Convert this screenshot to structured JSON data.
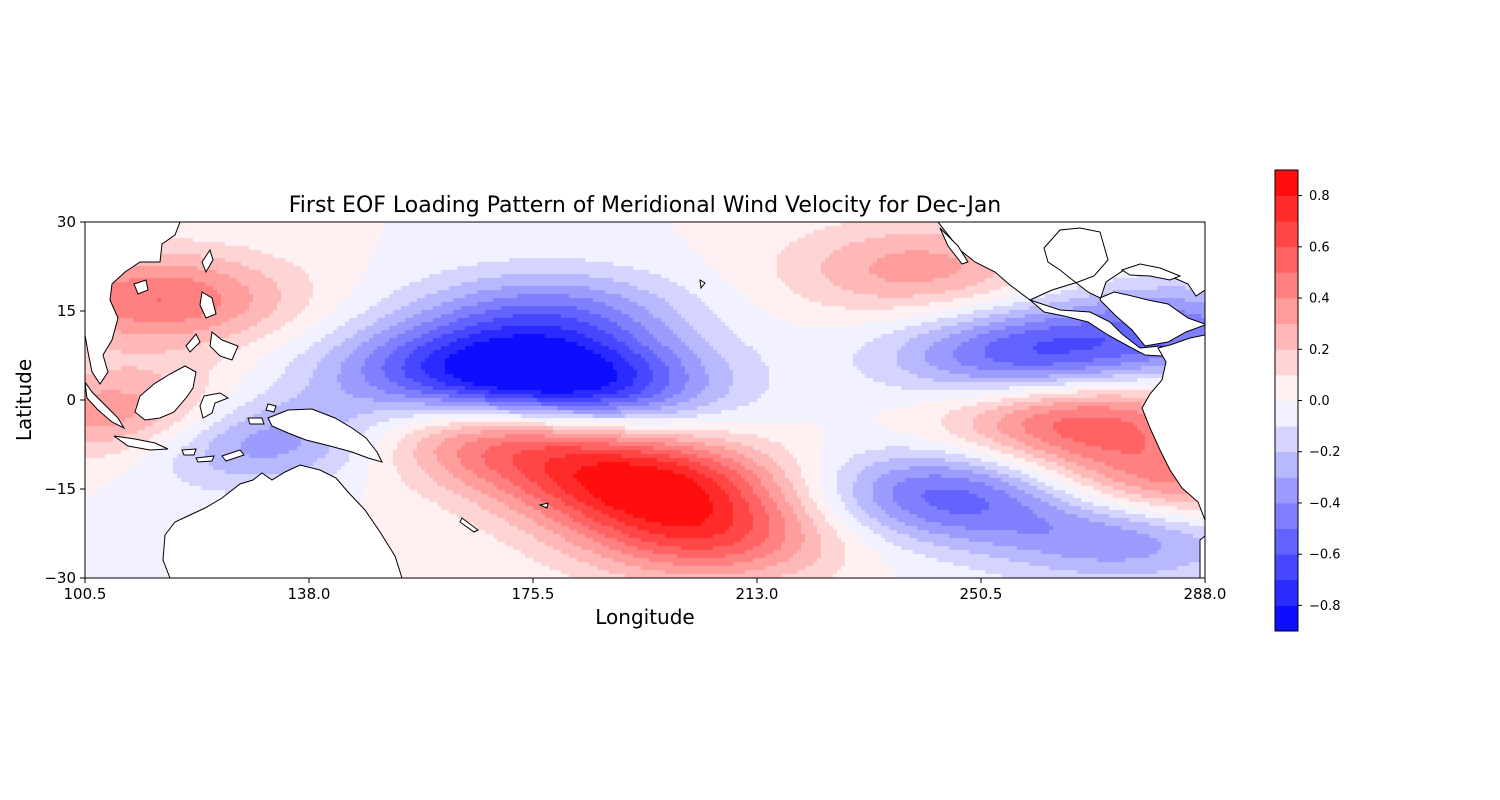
{
  "chart_data": {
    "type": "heatmap",
    "title": "First EOF Loading Pattern of Meridional Wind Velocity for Dec-Jan",
    "xlabel": "Longitude",
    "ylabel": "Latitude",
    "xlim": [
      100.5,
      288.0
    ],
    "ylim": [
      -30,
      30
    ],
    "x_ticks": [
      "100.5",
      "138.0",
      "175.5",
      "213.0",
      "250.5",
      "288.0"
    ],
    "x_tick_values": [
      100.5,
      138.0,
      175.5,
      213.0,
      250.5,
      288.0
    ],
    "y_ticks": [
      "30",
      "15",
      "0",
      "−15",
      "−30"
    ],
    "y_tick_values": [
      30,
      15,
      0,
      -15,
      -30
    ],
    "colormap": "bwr",
    "colorbar": {
      "range": [
        -0.9,
        0.9
      ],
      "levels": [
        -0.9,
        -0.8,
        -0.7,
        -0.6,
        -0.5,
        -0.4,
        -0.3,
        -0.2,
        -0.1,
        0.0,
        0.1,
        0.2,
        0.3,
        0.4,
        0.5,
        0.6,
        0.7,
        0.8,
        0.9
      ],
      "tick_labels": [
        "0.8",
        "0.6",
        "0.4",
        "0.2",
        "0.0",
        "−0.2",
        "−0.4",
        "−0.6",
        "−0.8"
      ],
      "tick_values": [
        0.8,
        0.6,
        0.4,
        0.2,
        0.0,
        -0.2,
        -0.4,
        -0.6,
        -0.8
      ],
      "placement": "right"
    },
    "field_features": [
      {
        "lon": 183,
        "lat": 2,
        "value": -0.8
      },
      {
        "lon": 162,
        "lat": 5,
        "value": -0.55
      },
      {
        "lon": 258,
        "lat": 7,
        "value": -0.6
      },
      {
        "lon": 178,
        "lat": 14,
        "value": -0.45
      },
      {
        "lon": 194,
        "lat": -14,
        "value": 0.75
      },
      {
        "lon": 172,
        "lat": -6,
        "value": 0.6
      },
      {
        "lon": 205,
        "lat": -23,
        "value": 0.55
      },
      {
        "lon": 266,
        "lat": -3,
        "value": 0.6
      },
      {
        "lon": 281,
        "lat": -15,
        "value": 0.55
      },
      {
        "lon": 245,
        "lat": -16,
        "value": -0.55
      },
      {
        "lon": 275,
        "lat": -22,
        "value": -0.5
      },
      {
        "lon": 113,
        "lat": 17,
        "value": 0.5
      },
      {
        "lon": 110,
        "lat": -3,
        "value": 0.55
      },
      {
        "lon": 126,
        "lat": -6,
        "value": -0.55
      },
      {
        "lon": 240,
        "lat": 22,
        "value": 0.35
      },
      {
        "lon": 283,
        "lat": 12,
        "value": -0.4
      }
    ]
  }
}
